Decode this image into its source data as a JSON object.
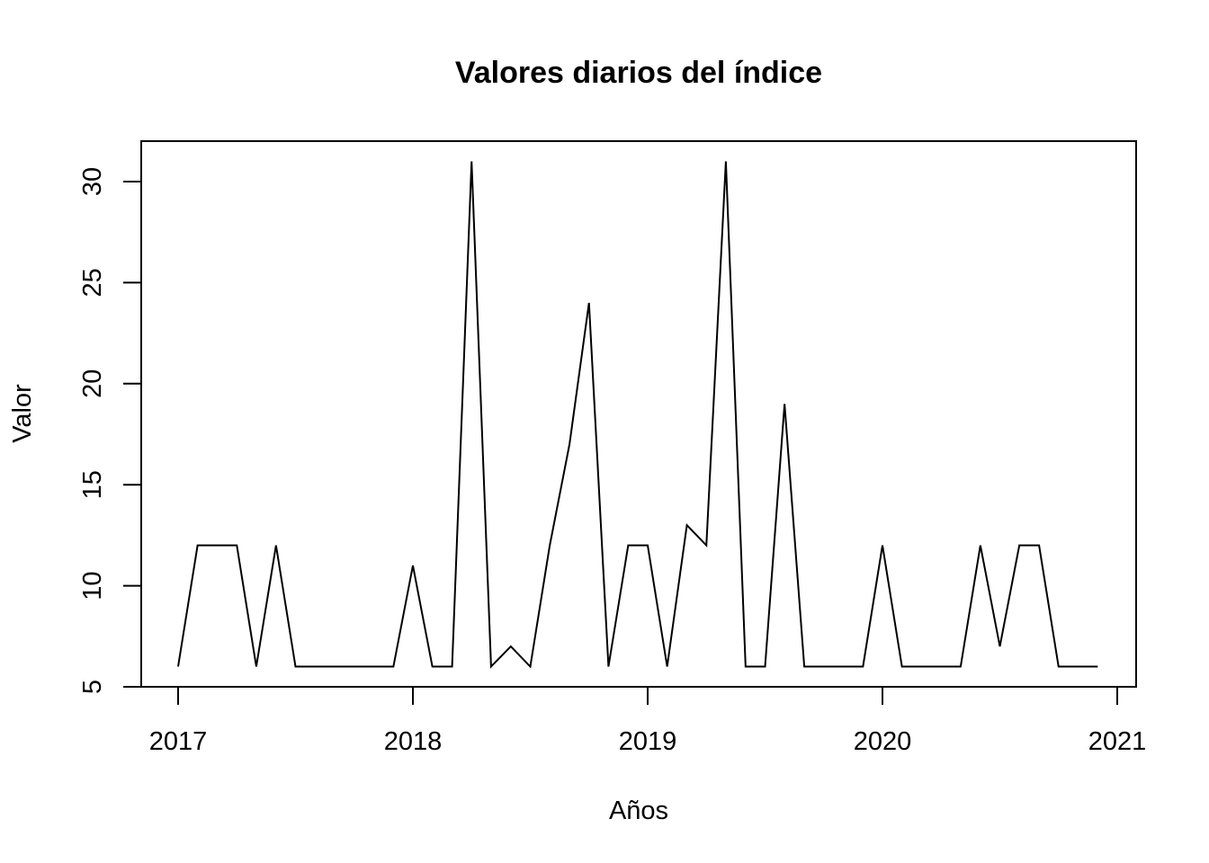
{
  "chart_data": {
    "type": "line",
    "title": "Valores diarios del índice",
    "xlabel": "Años",
    "ylabel": "Valor",
    "xlim": [
      2016.96,
      2021.07
    ],
    "ylim": [
      5,
      32
    ],
    "x_ticks": [
      2017,
      2018,
      2019,
      2020,
      2021
    ],
    "x_tick_labels": [
      "2017",
      "2018",
      "2019",
      "2020",
      "2021"
    ],
    "y_ticks": [
      5,
      10,
      15,
      20,
      25,
      30
    ],
    "y_tick_labels": [
      "5",
      "10",
      "15",
      "20",
      "25",
      "30"
    ],
    "grid": false,
    "legend": "none",
    "line_color": "#000000",
    "x": [
      2017.0,
      2017.083,
      2017.167,
      2017.25,
      2017.333,
      2017.417,
      2017.5,
      2017.583,
      2017.667,
      2017.75,
      2017.833,
      2017.917,
      2018.0,
      2018.083,
      2018.167,
      2018.25,
      2018.333,
      2018.417,
      2018.5,
      2018.583,
      2018.667,
      2018.75,
      2018.833,
      2018.917,
      2019.0,
      2019.083,
      2019.167,
      2019.25,
      2019.333,
      2019.417,
      2019.5,
      2019.583,
      2019.667,
      2019.75,
      2019.833,
      2019.917,
      2020.0,
      2020.083,
      2020.167,
      2020.25,
      2020.333,
      2020.417,
      2020.5,
      2020.583,
      2020.667,
      2020.75,
      2020.833,
      2020.917
    ],
    "values": [
      6,
      12,
      12,
      12,
      6,
      12,
      6,
      6,
      6,
      6,
      6,
      6,
      11,
      6,
      6,
      31,
      6,
      7,
      6,
      12,
      17,
      24,
      6,
      12,
      12,
      6,
      13,
      12,
      31,
      6,
      6,
      19,
      6,
      6,
      6,
      6,
      12,
      6,
      6,
      6,
      6,
      12,
      7,
      12,
      12,
      6,
      6,
      6
    ]
  }
}
